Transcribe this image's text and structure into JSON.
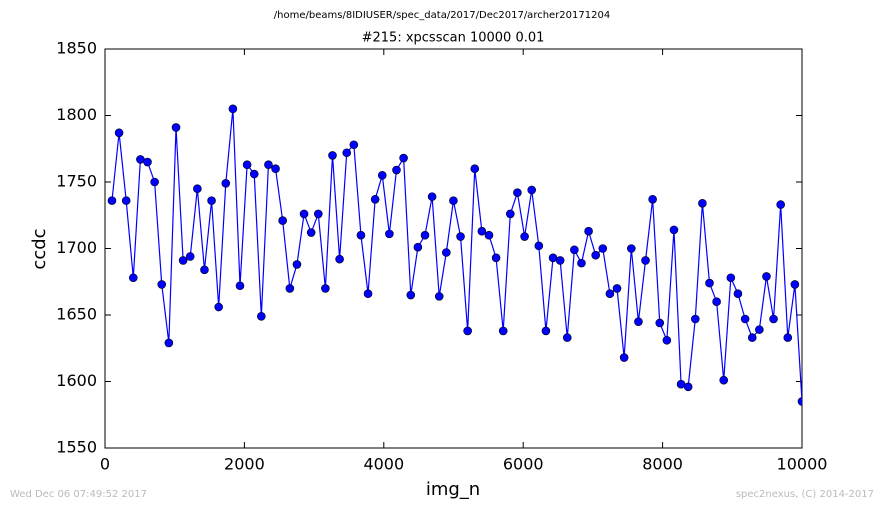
{
  "header": {
    "path": "/home/beams/8IDIUSER/spec_data/2017/Dec2017/archer20171204"
  },
  "footer": {
    "left": "Wed Dec 06 07:49:52 2017",
    "right": "spec2nexus, (C) 2014-2017"
  },
  "chart_data": {
    "type": "line",
    "title": "#215: xpcsscan 10000 0.01",
    "x_label": "img_n",
    "y_label": "ccdc",
    "xlim": [
      0,
      10000
    ],
    "xticks": [
      0,
      2000,
      4000,
      6000,
      8000,
      10000
    ],
    "ylim": [
      1550,
      1850
    ],
    "yticks": [
      1550,
      1600,
      1650,
      1700,
      1750,
      1800,
      1850
    ],
    "x": [
      100,
      202,
      304,
      406,
      508,
      610,
      712,
      814,
      916,
      1019,
      1121,
      1223,
      1325,
      1427,
      1529,
      1631,
      1733,
      1835,
      1937,
      2039,
      2141,
      2243,
      2345,
      2447,
      2549,
      2652,
      2754,
      2856,
      2958,
      3060,
      3162,
      3264,
      3366,
      3468,
      3570,
      3672,
      3774,
      3876,
      3978,
      4080,
      4182,
      4284,
      4387,
      4489,
      4591,
      4693,
      4795,
      4897,
      4999,
      5101,
      5203,
      5305,
      5407,
      5509,
      5611,
      5713,
      5815,
      5917,
      6020,
      6122,
      6224,
      6326,
      6428,
      6530,
      6632,
      6734,
      6836,
      6938,
      7040,
      7142,
      7244,
      7346,
      7448,
      7551,
      7653,
      7755,
      7857,
      7959,
      8061,
      8163,
      8265,
      8367,
      8469,
      8571,
      8673,
      8775,
      8877,
      8979,
      9081,
      9184,
      9286,
      9388,
      9490,
      9592,
      9694,
      9796,
      9898,
      10000
    ],
    "series": [
      {
        "color": "#0000ff",
        "values": [
          1736,
          1787,
          1736,
          1678,
          1767,
          1765,
          1750,
          1673,
          1629,
          1791,
          1691,
          1694,
          1745,
          1684,
          1736,
          1656,
          1749,
          1805,
          1672,
          1763,
          1756,
          1649,
          1763,
          1760,
          1721,
          1670,
          1688,
          1726,
          1712,
          1726,
          1670,
          1770,
          1692,
          1772,
          1778,
          1710,
          1666,
          1737,
          1755,
          1711,
          1759,
          1768,
          1665,
          1701,
          1710,
          1739,
          1664,
          1697,
          1736,
          1709,
          1638,
          1760,
          1713,
          1710,
          1693,
          1638,
          1726,
          1742,
          1709,
          1744,
          1702,
          1638,
          1693,
          1691,
          1633,
          1699,
          1689,
          1713,
          1695,
          1700,
          1666,
          1670,
          1618,
          1700,
          1645,
          1691,
          1737,
          1644,
          1631,
          1714,
          1598,
          1596,
          1647,
          1734,
          1674,
          1660,
          1601,
          1678,
          1666,
          1647,
          1633,
          1639,
          1679,
          1647,
          1733,
          1633,
          1673,
          1585
        ]
      }
    ]
  }
}
